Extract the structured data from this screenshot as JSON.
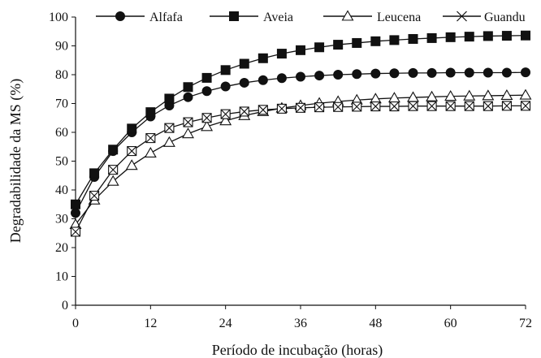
{
  "chart_data": {
    "type": "line",
    "xlabel": "Período de incubação (horas)",
    "ylabel": "Degradabilidade da MS (%)",
    "xlim": [
      0,
      72
    ],
    "ylim": [
      0,
      100
    ],
    "xticks": [
      0,
      12,
      24,
      36,
      48,
      60,
      72
    ],
    "yticks": [
      0,
      10,
      20,
      30,
      40,
      50,
      60,
      70,
      80,
      90,
      100
    ],
    "grid": false,
    "legend_position": "top",
    "x": [
      0,
      3,
      6,
      9,
      12,
      15,
      18,
      21,
      24,
      27,
      30,
      33,
      36,
      39,
      42,
      45,
      48,
      51,
      54,
      57,
      60,
      63,
      66,
      69,
      72
    ],
    "series": [
      {
        "name": "Alfafa",
        "marker": "filled-circle",
        "color": "#111111",
        "values": [
          32,
          44.5,
          53.5,
          60,
          65.5,
          69.3,
          72.2,
          74.3,
          75.9,
          77.2,
          78.1,
          78.8,
          79.3,
          79.7,
          80.0,
          80.2,
          80.4,
          80.5,
          80.6,
          80.6,
          80.7,
          80.7,
          80.7,
          80.7,
          80.8
        ]
      },
      {
        "name": "Aveia",
        "marker": "filled-square",
        "color": "#111111",
        "values": [
          35,
          45.8,
          54,
          61.3,
          67,
          71.7,
          75.7,
          78.9,
          81.6,
          83.8,
          85.7,
          87.3,
          88.5,
          89.5,
          90.4,
          91.0,
          91.6,
          92.0,
          92.4,
          92.7,
          93.0,
          93.2,
          93.4,
          93.5,
          93.6
        ]
      },
      {
        "name": "Leucena",
        "marker": "open-triangle",
        "color": "#111111",
        "values": [
          28,
          36.5,
          43,
          48.5,
          52.8,
          56.5,
          59.5,
          62,
          64,
          65.8,
          67.2,
          68.4,
          69.3,
          70.1,
          70.7,
          71.2,
          71.6,
          71.9,
          72.1,
          72.3,
          72.5,
          72.6,
          72.7,
          72.8,
          72.9
        ]
      },
      {
        "name": "Guandu",
        "marker": "open-square-x",
        "color": "#111111",
        "values": [
          25.5,
          38,
          47,
          53.5,
          58,
          61.5,
          63.5,
          65,
          66.3,
          67.2,
          67.8,
          68.2,
          68.5,
          68.7,
          68.8,
          68.9,
          69.0,
          69.0,
          69.1,
          69.1,
          69.1,
          69.1,
          69.1,
          69.2,
          69.2
        ]
      }
    ]
  }
}
